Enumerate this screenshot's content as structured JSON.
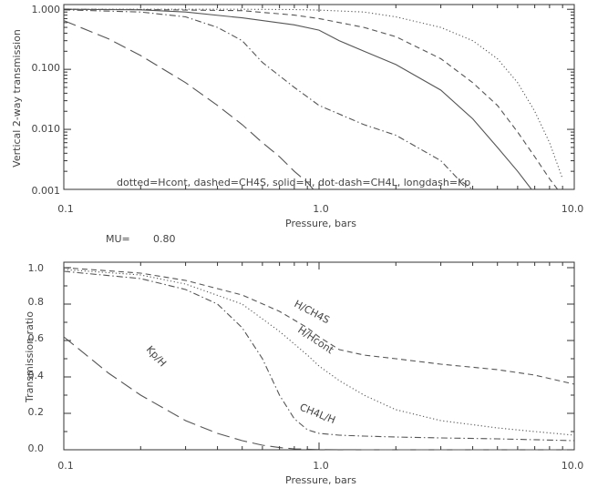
{
  "chart_data": [
    {
      "type": "line",
      "ylabel": "Vertical 2-way transmission",
      "xlabel": "Pressure, bars",
      "xscale": "log",
      "yscale": "log",
      "xlim": [
        0.1,
        10.0
      ],
      "ylim": [
        0.001,
        1.2
      ],
      "x_tick_labels": [
        "0.1",
        "1.0",
        "10.0"
      ],
      "y_tick_labels": [
        "0.001",
        "0.010",
        "0.100",
        "1.000"
      ],
      "legend_text": "dotted=Hcont, dashed=CH4S, solid=H, dot-dash=CH4L, longdash=Kp",
      "series": [
        {
          "name": "Hcont",
          "style": "dotted",
          "x": [
            0.1,
            0.2,
            0.5,
            0.8,
            1.0,
            1.5,
            2,
            3,
            4,
            5,
            6,
            7,
            8,
            9
          ],
          "y": [
            1.0,
            1.0,
            1.0,
            0.99,
            0.97,
            0.9,
            0.75,
            0.5,
            0.3,
            0.15,
            0.06,
            0.02,
            0.006,
            0.0015
          ]
        },
        {
          "name": "CH4S",
          "style": "dashed",
          "x": [
            0.1,
            0.2,
            0.5,
            0.8,
            1.0,
            1.5,
            2,
            3,
            4,
            5,
            6,
            7,
            8,
            8.6
          ],
          "y": [
            1.0,
            0.99,
            0.95,
            0.8,
            0.7,
            0.5,
            0.35,
            0.15,
            0.06,
            0.025,
            0.009,
            0.0035,
            0.0015,
            0.001
          ]
        },
        {
          "name": "H",
          "style": "solid",
          "x": [
            0.1,
            0.2,
            0.3,
            0.5,
            0.8,
            1.0,
            1.2,
            1.5,
            2,
            3,
            4,
            5,
            6,
            6.8
          ],
          "y": [
            1.0,
            0.98,
            0.9,
            0.72,
            0.55,
            0.45,
            0.3,
            0.2,
            0.12,
            0.045,
            0.015,
            0.005,
            0.002,
            0.001
          ]
        },
        {
          "name": "CH4L",
          "style": "dot-dash",
          "x": [
            0.1,
            0.2,
            0.3,
            0.4,
            0.5,
            0.6,
            0.8,
            1.0,
            1.5,
            2,
            3,
            3.5,
            4
          ],
          "y": [
            0.98,
            0.9,
            0.75,
            0.5,
            0.3,
            0.13,
            0.05,
            0.025,
            0.012,
            0.008,
            0.003,
            0.0015,
            0.001
          ]
        },
        {
          "name": "Kp",
          "style": "longdash",
          "x": [
            0.1,
            0.15,
            0.2,
            0.3,
            0.4,
            0.5,
            0.6,
            0.7,
            0.8,
            0.9,
            0.95
          ],
          "y": [
            0.65,
            0.32,
            0.17,
            0.06,
            0.025,
            0.012,
            0.006,
            0.0035,
            0.002,
            0.0013,
            0.001
          ]
        }
      ]
    },
    {
      "type": "line",
      "ylabel": "Transmission ratio",
      "xlabel": "Pressure, bars",
      "xscale": "log",
      "xlim": [
        0.1,
        10.0
      ],
      "ylim": [
        0.0,
        1.03
      ],
      "x_tick_labels": [
        "0.1",
        "1.0",
        "10.0"
      ],
      "y_tick_labels": [
        "0.0",
        "0.2",
        "0.4",
        "0.6",
        "0.8",
        "1.0"
      ],
      "series": [
        {
          "name": "H/CH4S",
          "style": "dashed",
          "x": [
            0.1,
            0.2,
            0.3,
            0.5,
            0.7,
            0.9,
            1.0,
            1.2,
            1.5,
            2,
            3,
            5,
            7,
            10
          ],
          "y": [
            1.0,
            0.97,
            0.93,
            0.85,
            0.76,
            0.67,
            0.62,
            0.55,
            0.52,
            0.5,
            0.47,
            0.44,
            0.41,
            0.36
          ]
        },
        {
          "name": "H/Hcont",
          "style": "dotted",
          "x": [
            0.1,
            0.2,
            0.3,
            0.5,
            0.7,
            0.9,
            1.0,
            1.2,
            1.5,
            2,
            3,
            5,
            7,
            10
          ],
          "y": [
            0.99,
            0.96,
            0.91,
            0.8,
            0.65,
            0.52,
            0.46,
            0.38,
            0.3,
            0.22,
            0.16,
            0.12,
            0.1,
            0.08
          ]
        },
        {
          "name": "CH4L/H",
          "style": "dot-dash",
          "x": [
            0.1,
            0.2,
            0.3,
            0.4,
            0.5,
            0.6,
            0.7,
            0.8,
            0.9,
            1.0,
            1.2,
            1.5,
            2,
            3,
            5,
            10
          ],
          "y": [
            0.98,
            0.94,
            0.88,
            0.8,
            0.67,
            0.5,
            0.3,
            0.17,
            0.11,
            0.09,
            0.08,
            0.075,
            0.07,
            0.065,
            0.06,
            0.05
          ]
        },
        {
          "name": "Kp/H",
          "style": "longdash",
          "x": [
            0.1,
            0.15,
            0.2,
            0.3,
            0.4,
            0.5,
            0.6,
            0.7,
            0.8,
            1.0,
            1.5,
            2,
            10
          ],
          "y": [
            0.62,
            0.42,
            0.3,
            0.16,
            0.09,
            0.05,
            0.025,
            0.012,
            0.005,
            0.001,
            0,
            0,
            0
          ]
        }
      ],
      "annotations": [
        "H/CH4S",
        "H/Hcont",
        "CH4L/H",
        "Kp/H"
      ]
    }
  ],
  "mu_label": "MU=",
  "mu_value": "0.80"
}
